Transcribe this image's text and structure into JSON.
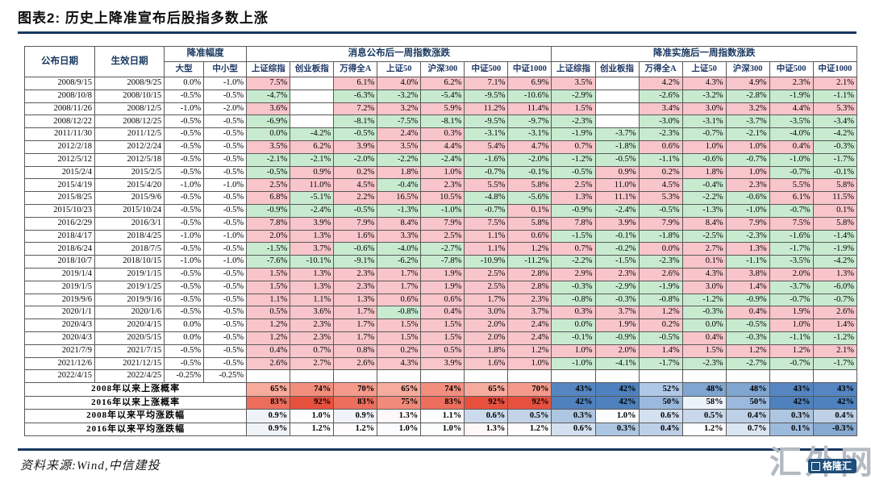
{
  "page": {
    "title": "图表2: 历史上降准宣布后股指多数上涨",
    "source": "资料来源:Wind,中信建投",
    "watermark_text": "汇外网",
    "watermark_badge": "格隆汇"
  },
  "colors": {
    "accent_line": "#17375E",
    "positive_bg": "#F8C5CA",
    "positive_text": "#BE3038",
    "negative_bg": "#C8EBD0",
    "negative_text": "#2B7A43"
  },
  "table": {
    "header": {
      "announce_date": "公布日期",
      "effective_date": "生效日期",
      "cut_group": "降准幅度",
      "cut_cols": [
        "大型",
        "中小型"
      ],
      "announce_group": "消息公布后一周指数涨跌",
      "impl_group": "降准实施后一周指数涨跌",
      "index_cols": [
        "上证综指",
        "创业板指",
        "万得全A",
        "上证50",
        "沪深300",
        "中证500",
        "中证1000"
      ]
    },
    "color_exceptions": {
      "impl:13:2": "pos"
    },
    "rows": [
      {
        "announce": "2008/9/15",
        "effective": "2008/9/25",
        "large": "0.0%",
        "small": "-1.0%",
        "after_announce": [
          "7.5%",
          "",
          "6.1%",
          "4.0%",
          "6.2%",
          "7.1%",
          "6.9%"
        ],
        "after_impl": [
          "3.5%",
          "",
          "4.2%",
          "4.3%",
          "4.9%",
          "2.3%",
          "2.1%"
        ]
      },
      {
        "announce": "2008/10/8",
        "effective": "2008/10/15",
        "large": "-0.5%",
        "small": "-0.5%",
        "after_announce": [
          "-4.7%",
          "",
          "-6.3%",
          "-3.2%",
          "-5.4%",
          "-9.5%",
          "-10.6%"
        ],
        "after_impl": [
          "-2.9%",
          "",
          "-2.6%",
          "-3.2%",
          "-2.8%",
          "-1.9%",
          "-1.1%"
        ]
      },
      {
        "announce": "2008/11/26",
        "effective": "2008/12/5",
        "large": "-1.0%",
        "small": "-2.0%",
        "after_announce": [
          "3.6%",
          "",
          "7.2%",
          "3.2%",
          "5.9%",
          "11.2%",
          "11.4%"
        ],
        "after_impl": [
          "1.5%",
          "",
          "3.4%",
          "3.0%",
          "3.2%",
          "4.4%",
          "5.3%"
        ]
      },
      {
        "announce": "2008/12/22",
        "effective": "2008/12/25",
        "large": "-0.5%",
        "small": "-0.5%",
        "after_announce": [
          "-6.9%",
          "",
          "-8.1%",
          "-7.5%",
          "-8.1%",
          "-9.5%",
          "-9.7%"
        ],
        "after_impl": [
          "-2.3%",
          "",
          "-3.0%",
          "-3.1%",
          "-3.7%",
          "-3.5%",
          "-3.4%"
        ]
      },
      {
        "announce": "2011/11/30",
        "effective": "2011/12/5",
        "large": "-0.5%",
        "small": "-0.5%",
        "after_announce": [
          "0.0%",
          "-4.2%",
          "-0.5%",
          "2.4%",
          "0.3%",
          "-3.1%",
          "-3.1%"
        ],
        "after_impl": [
          "-1.9%",
          "-3.7%",
          "-2.3%",
          "-0.7%",
          "-2.1%",
          "-4.0%",
          "-4.2%"
        ]
      },
      {
        "announce": "2012/2/18",
        "effective": "2012/2/24",
        "large": "-0.5%",
        "small": "-0.5%",
        "after_announce": [
          "3.5%",
          "6.2%",
          "3.9%",
          "3.5%",
          "4.4%",
          "5.4%",
          "4.7%"
        ],
        "after_impl": [
          "0.7%",
          "-1.8%",
          "0.6%",
          "1.0%",
          "1.0%",
          "0.4%",
          "-0.3%"
        ]
      },
      {
        "announce": "2012/5/12",
        "effective": "2012/5/18",
        "large": "-0.5%",
        "small": "-0.5%",
        "after_announce": [
          "-2.1%",
          "-2.1%",
          "-2.0%",
          "-2.2%",
          "-2.4%",
          "-1.6%",
          "-2.0%"
        ],
        "after_impl": [
          "-1.2%",
          "-0.5%",
          "-1.1%",
          "-0.6%",
          "-0.7%",
          "-1.0%",
          "-1.7%"
        ]
      },
      {
        "announce": "2015/2/4",
        "effective": "2015/2/5",
        "large": "-0.5%",
        "small": "-0.5%",
        "after_announce": [
          "-0.5%",
          "0.9%",
          "0.2%",
          "1.8%",
          "1.0%",
          "-0.7%",
          "-0.1%"
        ],
        "after_impl": [
          "-0.5%",
          "0.9%",
          "0.2%",
          "1.8%",
          "1.0%",
          "-0.7%",
          "-0.1%"
        ]
      },
      {
        "announce": "2015/4/19",
        "effective": "2015/4/20",
        "large": "-1.0%",
        "small": "-1.0%",
        "after_announce": [
          "2.5%",
          "11.0%",
          "4.5%",
          "-0.4%",
          "2.3%",
          "5.5%",
          "5.8%"
        ],
        "after_impl": [
          "2.5%",
          "11.0%",
          "4.5%",
          "-0.4%",
          "2.3%",
          "5.5%",
          "5.8%"
        ]
      },
      {
        "announce": "2015/8/25",
        "effective": "2015/9/6",
        "large": "-0.5%",
        "small": "-0.5%",
        "after_announce": [
          "6.8%",
          "-5.1%",
          "2.2%",
          "16.5%",
          "10.5%",
          "-4.8%",
          "-5.6%"
        ],
        "after_impl": [
          "1.3%",
          "11.1%",
          "5.3%",
          "-2.2%",
          "-0.6%",
          "6.1%",
          "11.5%"
        ]
      },
      {
        "announce": "2015/10/23",
        "effective": "2015/10/24",
        "large": "-0.5%",
        "small": "-0.5%",
        "after_announce": [
          "-0.9%",
          "-2.4%",
          "-0.5%",
          "-1.3%",
          "-1.0%",
          "-0.7%",
          "0.1%"
        ],
        "after_impl": [
          "-0.9%",
          "-2.4%",
          "-0.5%",
          "-1.3%",
          "-1.0%",
          "-0.7%",
          "0.1%"
        ]
      },
      {
        "announce": "2016/2/29",
        "effective": "2016/3/1",
        "large": "-0.5%",
        "small": "-0.5%",
        "after_announce": [
          "7.8%",
          "3.9%",
          "7.9%",
          "8.4%",
          "7.9%",
          "7.5%",
          "5.8%"
        ],
        "after_impl": [
          "7.8%",
          "3.9%",
          "7.9%",
          "8.4%",
          "7.9%",
          "7.5%",
          "5.8%"
        ]
      },
      {
        "announce": "2018/4/17",
        "effective": "2018/4/25",
        "large": "-1.0%",
        "small": "-1.0%",
        "after_announce": [
          "2.0%",
          "1.3%",
          "1.6%",
          "3.3%",
          "2.5%",
          "1.1%",
          "0.6%"
        ],
        "after_impl": [
          "-1.5%",
          "-0.1%",
          "-1.8%",
          "-2.5%",
          "-2.3%",
          "-1.6%",
          "-1.4%"
        ]
      },
      {
        "announce": "2018/6/24",
        "effective": "2018/7/5",
        "large": "-0.5%",
        "small": "-0.5%",
        "after_announce": [
          "-1.5%",
          "3.7%",
          "-0.6%",
          "-4.0%",
          "-2.7%",
          "1.1%",
          "1.2%"
        ],
        "after_impl": [
          "0.7%",
          "-0.2%",
          "0.0%",
          "2.7%",
          "1.3%",
          "-1.7%",
          "-1.9%"
        ]
      },
      {
        "announce": "2018/10/7",
        "effective": "2018/10/15",
        "large": "-1.0%",
        "small": "-1.0%",
        "after_announce": [
          "-7.6%",
          "-10.1%",
          "-9.1%",
          "-6.2%",
          "-7.8%",
          "-10.9%",
          "-11.2%"
        ],
        "after_impl": [
          "-2.2%",
          "-1.5%",
          "-2.3%",
          "0.1%",
          "-1.1%",
          "-3.5%",
          "-4.2%"
        ]
      },
      {
        "announce": "2019/1/4",
        "effective": "2019/1/15",
        "large": "-0.5%",
        "small": "-0.5%",
        "after_announce": [
          "1.5%",
          "1.3%",
          "2.3%",
          "1.7%",
          "1.9%",
          "2.5%",
          "2.8%"
        ],
        "after_impl": [
          "2.9%",
          "2.3%",
          "2.6%",
          "4.3%",
          "3.8%",
          "2.0%",
          "1.3%"
        ]
      },
      {
        "announce": "2019/1/5",
        "effective": "2019/1/25",
        "large": "-0.5%",
        "small": "-0.5%",
        "after_announce": [
          "1.5%",
          "1.3%",
          "2.3%",
          "1.7%",
          "1.9%",
          "2.5%",
          "2.8%"
        ],
        "after_impl": [
          "-0.3%",
          "-2.9%",
          "-1.9%",
          "3.0%",
          "1.4%",
          "-3.7%",
          "-6.0%"
        ]
      },
      {
        "announce": "2019/9/6",
        "effective": "2019/9/16",
        "large": "-0.5%",
        "small": "-0.5%",
        "after_announce": [
          "1.1%",
          "1.1%",
          "1.3%",
          "0.6%",
          "0.6%",
          "1.7%",
          "2.3%"
        ],
        "after_impl": [
          "-0.8%",
          "-0.3%",
          "-0.8%",
          "-1.2%",
          "-0.9%",
          "-0.7%",
          "-0.7%"
        ]
      },
      {
        "announce": "2020/1/1",
        "effective": "2020/1/6",
        "large": "-0.5%",
        "small": "-0.5%",
        "after_announce": [
          "0.5%",
          "3.6%",
          "1.7%",
          "-0.8%",
          "0.4%",
          "3.0%",
          "3.7%"
        ],
        "after_impl": [
          "0.3%",
          "3.7%",
          "1.2%",
          "-0.3%",
          "0.4%",
          "1.9%",
          "2.6%"
        ]
      },
      {
        "announce": "2020/4/3",
        "effective": "2020/4/15",
        "large": "0.0%",
        "small": "-0.5%",
        "after_announce": [
          "1.2%",
          "2.3%",
          "1.7%",
          "1.5%",
          "1.5%",
          "2.0%",
          "2.4%"
        ],
        "after_impl": [
          "0.0%",
          "1.9%",
          "0.2%",
          "0.0%",
          "-0.5%",
          "1.0%",
          "1.4%"
        ]
      },
      {
        "announce": "2020/4/3",
        "effective": "2020/5/15",
        "large": "0.0%",
        "small": "-0.5%",
        "after_announce": [
          "1.2%",
          "2.3%",
          "1.7%",
          "1.5%",
          "1.5%",
          "2.0%",
          "2.4%"
        ],
        "after_impl": [
          "-0.1%",
          "-0.9%",
          "-0.5%",
          "0.4%",
          "-0.3%",
          "-1.1%",
          "-1.2%"
        ]
      },
      {
        "announce": "2021/7/9",
        "effective": "2021/7/15",
        "large": "-0.5%",
        "small": "-0.5%",
        "after_announce": [
          "0.4%",
          "0.7%",
          "0.8%",
          "0.2%",
          "0.5%",
          "1.8%",
          "1.2%"
        ],
        "after_impl": [
          "1.0%",
          "2.0%",
          "1.4%",
          "1.5%",
          "1.2%",
          "1.2%",
          "2.1%"
        ]
      },
      {
        "announce": "2021/12/6",
        "effective": "2021/12/15",
        "large": "-0.5%",
        "small": "-0.5%",
        "after_announce": [
          "2.6%",
          "2.7%",
          "2.6%",
          "4.3%",
          "3.9%",
          "1.6%",
          "1.0%"
        ],
        "after_impl": [
          "-1.0%",
          "-4.1%",
          "-1.7%",
          "-2.3%",
          "-2.7%",
          "-0.7%",
          "-1.7%"
        ]
      },
      {
        "announce": "2022/4/15",
        "effective": "2022/4/25",
        "large": "-0.25%",
        "small": "-0.25%",
        "after_announce": [
          "",
          "",
          "",
          "",
          "",
          "",
          ""
        ],
        "after_impl": [
          "",
          "",
          "",
          "",
          "",
          "",
          ""
        ]
      }
    ],
    "summary": [
      {
        "label": "2008年以来上涨概率",
        "announce": [
          "65%",
          "74%",
          "70%",
          "65%",
          "74%",
          "65%",
          "70%"
        ],
        "announce_bg": [
          "#F7AB9C",
          "#F28E7E",
          "#F49A8B",
          "#F7AB9C",
          "#F28E7E",
          "#F7AB9C",
          "#F49A8B"
        ],
        "impl": [
          "43%",
          "42%",
          "52%",
          "48%",
          "48%",
          "43%",
          "43%"
        ],
        "impl_bg": [
          "#5586C1",
          "#4E81BD",
          "#AFC8E7",
          "#7FA5D1",
          "#7FA5D1",
          "#5586C1",
          "#5586C1"
        ]
      },
      {
        "label": "2016年以来上涨概率",
        "announce": [
          "83%",
          "92%",
          "83%",
          "75%",
          "83%",
          "92%",
          "92%"
        ],
        "announce_bg": [
          "#ED6E5C",
          "#E8503E",
          "#ED6E5C",
          "#F28A7A",
          "#ED6E5C",
          "#E8503E",
          "#E8503E"
        ],
        "impl": [
          "42%",
          "42%",
          "50%",
          "58%",
          "50%",
          "42%",
          "42%"
        ],
        "impl_bg": [
          "#4E81BD",
          "#4E81BD",
          "#9BB9DE",
          "#EDF3FA",
          "#9BB9DE",
          "#4E81BD",
          "#4E81BD"
        ]
      },
      {
        "label": "2008年以来平均涨跌幅",
        "announce": [
          "0.9%",
          "1.0%",
          "0.9%",
          "1.3%",
          "1.1%",
          "0.6%",
          "0.5%"
        ],
        "announce_bg": [
          "#EFF3F9",
          "#FDFDFE",
          "#EFF3F9",
          "#FEF9F8",
          "#FBFCFE",
          "#CBDAEC",
          "#C3D4E9"
        ],
        "impl": [
          "0.3%",
          "1.0%",
          "0.6%",
          "0.5%",
          "0.4%",
          "0.3%",
          "0.4%"
        ],
        "impl_bg": [
          "#ADC6E2",
          "#FBFCFD",
          "#D3E0EF",
          "#C9D8EB",
          "#BDD0E7",
          "#ADC6E2",
          "#BDD0E7"
        ]
      },
      {
        "label": "2016年以来平均涨跌幅",
        "announce": [
          "0.9%",
          "1.2%",
          "1.2%",
          "1.0%",
          "1.0%",
          "1.3%",
          "1.2%"
        ],
        "announce_bg": [
          "#EFF3F9",
          "#FEFCFC",
          "#FEFCFC",
          "#FBFCFE",
          "#FBFCFE",
          "#FEF9F8",
          "#FEFCFC"
        ],
        "impl": [
          "0.6%",
          "0.3%",
          "0.4%",
          "1.2%",
          "0.7%",
          "0.1%",
          "-0.3%"
        ],
        "impl_bg": [
          "#D3E0EF",
          "#ADC6E2",
          "#BDD0E7",
          "#FCFDFE",
          "#DCE6F2",
          "#9DBBDC",
          "#85A9D0"
        ]
      }
    ]
  }
}
